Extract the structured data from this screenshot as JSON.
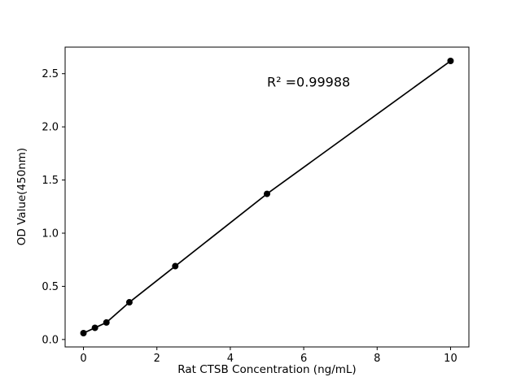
{
  "chart_data": {
    "type": "line",
    "title": "",
    "xlabel": "Rat CTSB Concentration (ng/mL)",
    "ylabel": "OD Value(450nm)",
    "annotation": "R² =0.99988",
    "annotation_xy": [
      5.0,
      2.38
    ],
    "x": [
      0,
      0.3125,
      0.625,
      1.25,
      2.5,
      5,
      10
    ],
    "y": [
      0.06,
      0.11,
      0.16,
      0.35,
      0.69,
      1.37,
      2.62
    ],
    "xlim": [
      -0.5,
      10.5
    ],
    "ylim": [
      -0.07,
      2.75
    ],
    "xticks": [
      0,
      2,
      4,
      6,
      8,
      10
    ],
    "xtick_labels": [
      "0",
      "2",
      "4",
      "6",
      "8",
      "10"
    ],
    "yticks": [
      0.0,
      0.5,
      1.0,
      1.5,
      2.0,
      2.5
    ],
    "ytick_labels": [
      "0.0",
      "0.5",
      "1.0",
      "1.5",
      "2.0",
      "2.5"
    ],
    "grid": false,
    "legend": "none",
    "line_color": "#000000",
    "marker_color": "#000000",
    "marker": "circle",
    "background": "#ffffff"
  }
}
